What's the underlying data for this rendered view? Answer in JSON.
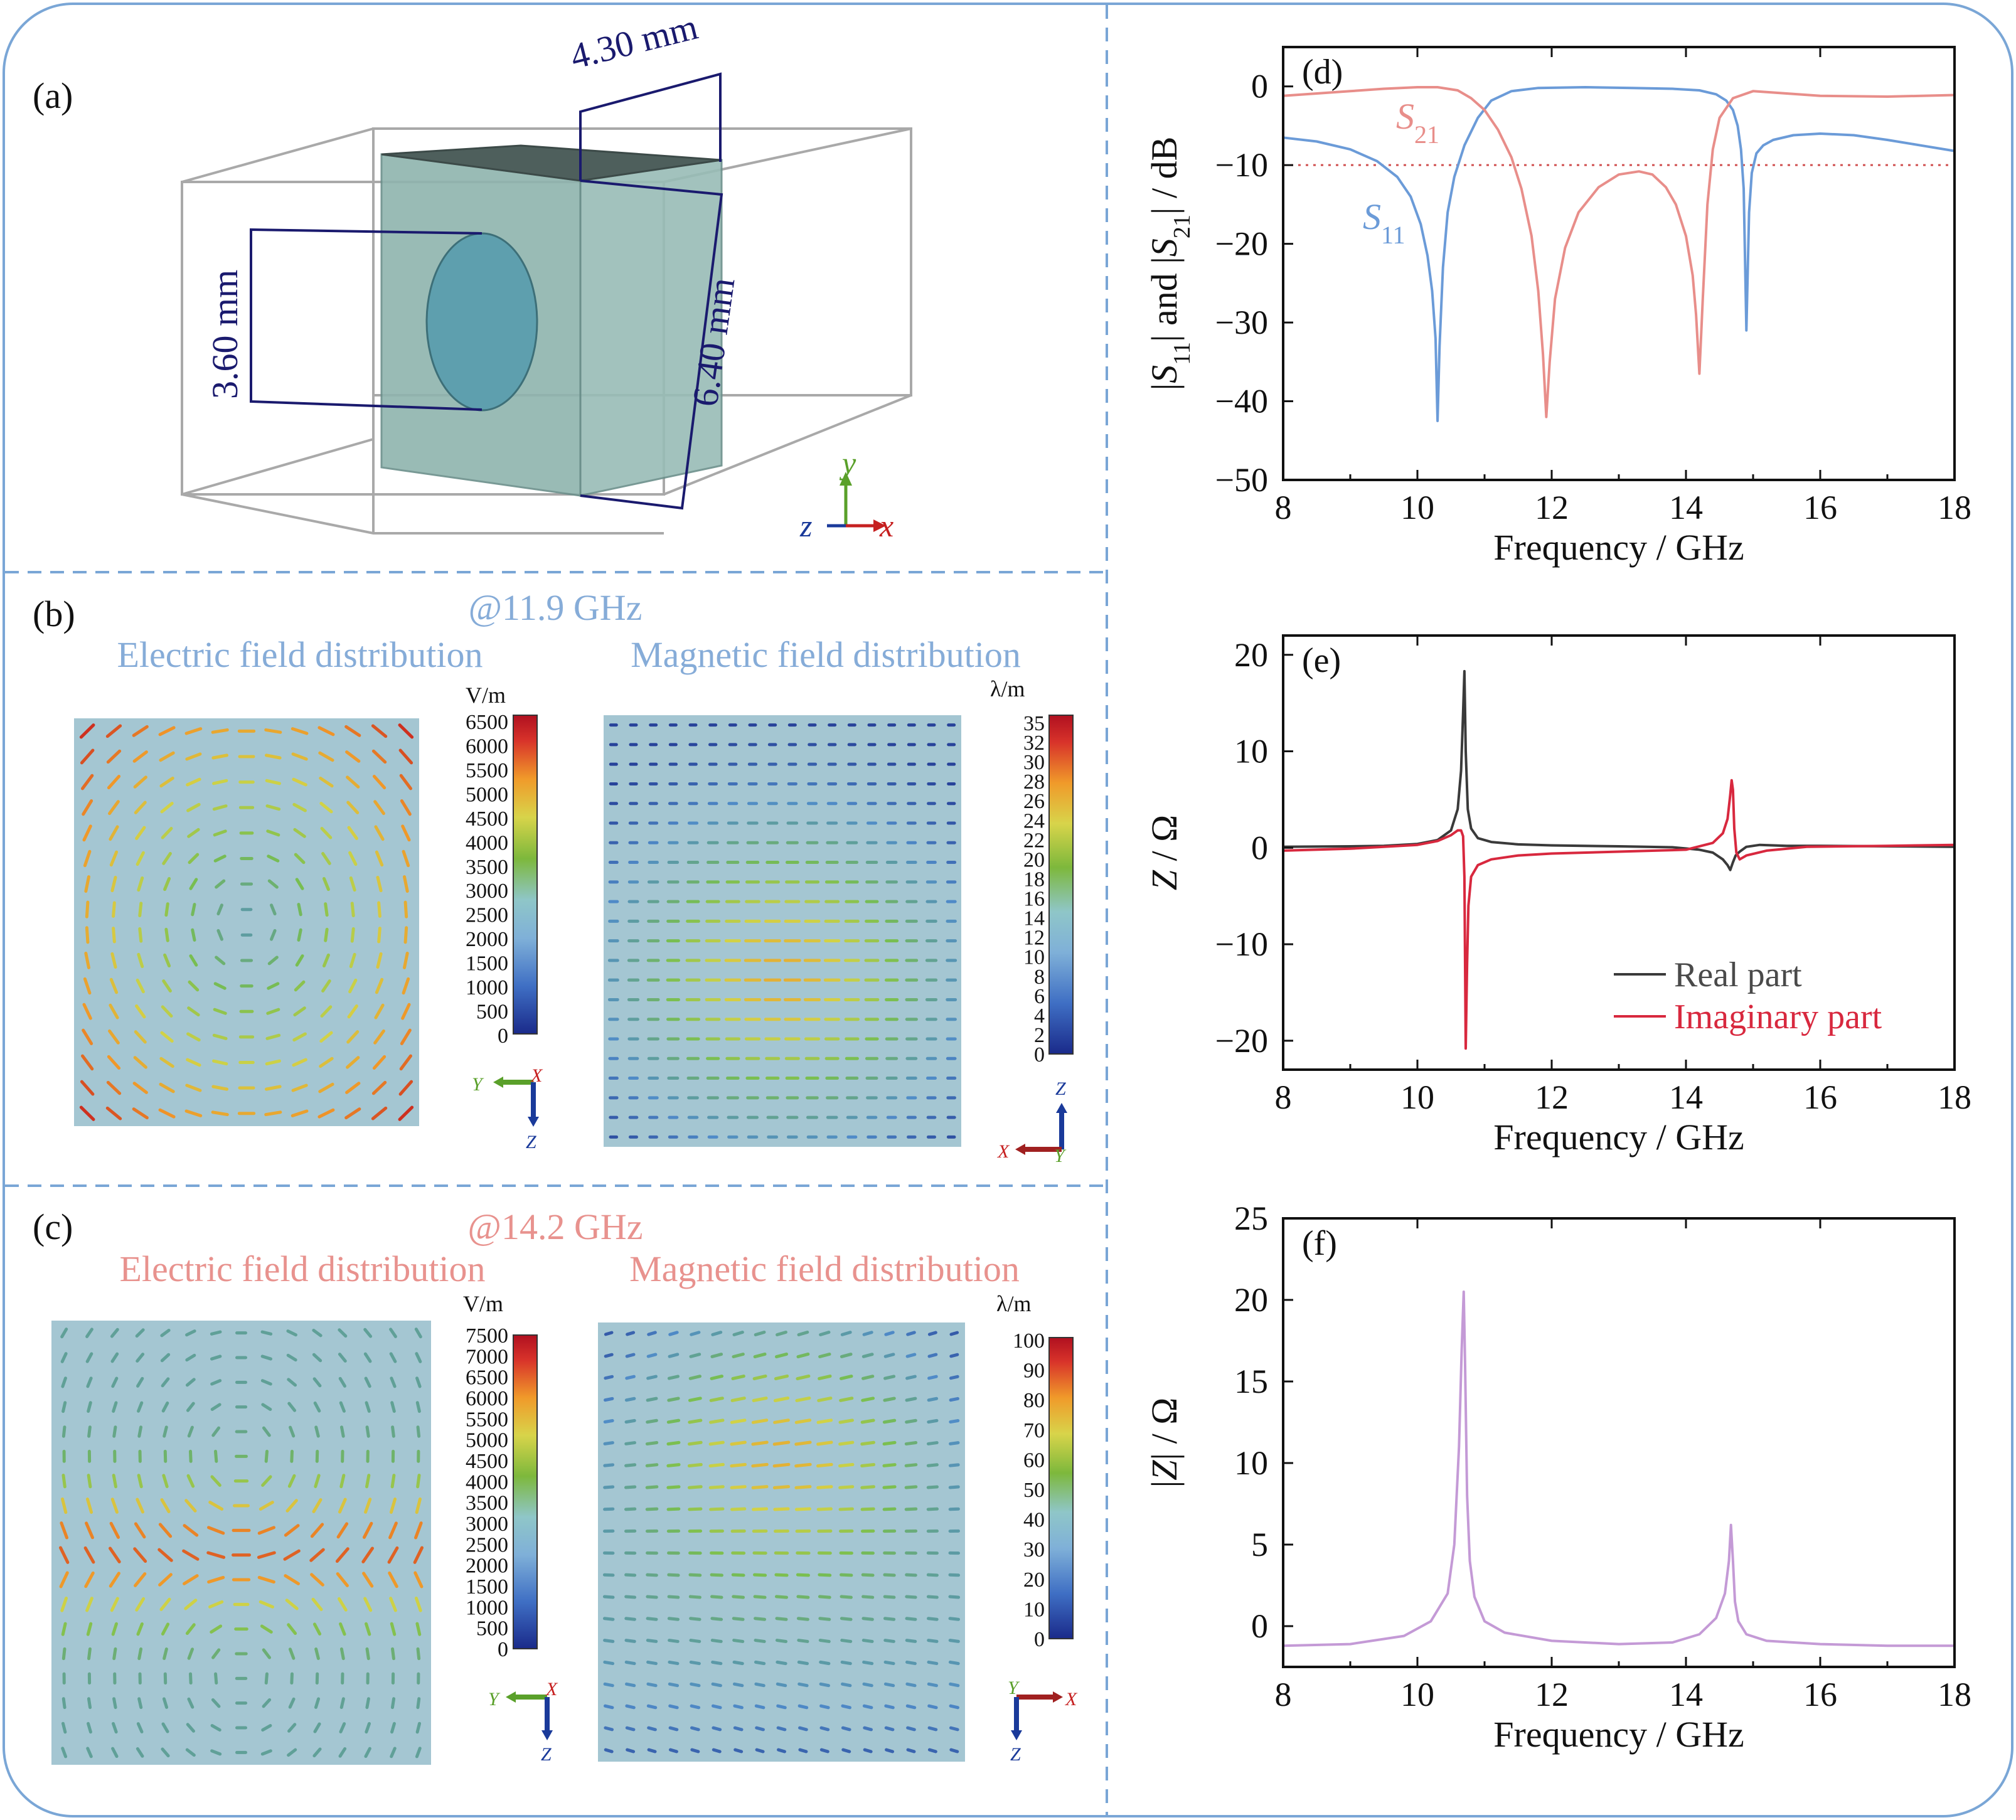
{
  "panel_a": {
    "label": "(a)",
    "dim_top": "4.30 mm",
    "dim_left": "3.60 mm",
    "dim_right": "6.40 mm",
    "axis_y": "y",
    "axis_z": "z",
    "axis_x": "x"
  },
  "panel_b": {
    "label": "(b)",
    "freq": "@11.9 GHz",
    "e_title": "Electric field distribution",
    "m_title": "Magnetic field distribution",
    "e_unit": "V/m",
    "m_unit": "λ/m",
    "e_ticks": [
      "6500",
      "6000",
      "5500",
      "5000",
      "4500",
      "4000",
      "3500",
      "3000",
      "2500",
      "2000",
      "1500",
      "1000",
      "500",
      "0"
    ],
    "m_ticks": [
      "35",
      "32",
      "30",
      "28",
      "26",
      "24",
      "22",
      "20",
      "18",
      "16",
      "14",
      "12",
      "10",
      "8",
      "6",
      "4",
      "2",
      "0"
    ],
    "e_axes": {
      "h": "Y",
      "c": "X",
      "v": "Z"
    },
    "m_axes": {
      "h": "X",
      "c": "Y",
      "v": "Z"
    }
  },
  "panel_c": {
    "label": "(c)",
    "freq": "@14.2 GHz",
    "e_title": "Electric field distribution",
    "m_title": "Magnetic field distribution",
    "e_unit": "V/m",
    "m_unit": "λ/m",
    "e_ticks": [
      "7500",
      "7000",
      "6500",
      "6000",
      "5500",
      "5000",
      "4500",
      "4000",
      "3500",
      "3000",
      "2500",
      "2000",
      "1500",
      "1000",
      "500",
      "0"
    ],
    "m_ticks": [
      "100",
      "90",
      "80",
      "70",
      "60",
      "50",
      "40",
      "30",
      "20",
      "10",
      "0"
    ],
    "e_axes": {
      "h": "Y",
      "c": "X",
      "v": "Z"
    },
    "m_axes": {
      "h": "X",
      "c": "Y",
      "v": "Z"
    }
  },
  "colors": {
    "frame": "#7aa6d6",
    "s11": "#6b9bd8",
    "s21": "#e88e8a",
    "real": "#3a3a3a",
    "imag": "#d8283e",
    "absz": "#c49ad6",
    "navy": "#1a1a6e"
  },
  "chart_data": [
    {
      "id": "d",
      "type": "line",
      "label": "(d)",
      "xlabel": "Frequency / GHz",
      "ylabel_parts": [
        "|",
        "S",
        "11",
        "| and |",
        "S",
        "21",
        "| / dB"
      ],
      "xlim": [
        8,
        18
      ],
      "ylim": [
        -50,
        5
      ],
      "xticks": [
        8,
        10,
        12,
        14,
        16,
        18
      ],
      "yticks": [
        0,
        -10,
        -20,
        -30,
        -40,
        -50
      ],
      "reference_line": -10,
      "series": [
        {
          "name": "S11",
          "name_main": "S",
          "name_sub": "11",
          "x": [
            8,
            8.5,
            9,
            9.4,
            9.7,
            9.9,
            10.05,
            10.15,
            10.22,
            10.27,
            10.3,
            10.33,
            10.38,
            10.45,
            10.55,
            10.7,
            10.9,
            11.1,
            11.4,
            11.8,
            12.5,
            13.2,
            13.8,
            14.2,
            14.45,
            14.6,
            14.7,
            14.77,
            14.82,
            14.86,
            14.9,
            14.94,
            14.98,
            15.05,
            15.15,
            15.3,
            15.6,
            16,
            16.5,
            17,
            17.5,
            18
          ],
          "values": [
            -6.5,
            -7,
            -8,
            -9.5,
            -11.5,
            -14,
            -17.5,
            -21.5,
            -26,
            -32,
            -42.5,
            -33,
            -23,
            -16,
            -11.5,
            -7.5,
            -4,
            -1.8,
            -0.6,
            -0.2,
            -0.1,
            -0.2,
            -0.3,
            -0.5,
            -1,
            -1.8,
            -3,
            -5,
            -8,
            -13,
            -31,
            -16,
            -11,
            -8.5,
            -7.5,
            -6.8,
            -6.2,
            -6,
            -6.2,
            -6.8,
            -7.5,
            -8.2
          ]
        },
        {
          "name": "S21",
          "name_main": "S",
          "name_sub": "21",
          "x": [
            8,
            8.5,
            9,
            9.5,
            10,
            10.3,
            10.6,
            10.8,
            11,
            11.2,
            11.4,
            11.55,
            11.7,
            11.8,
            11.87,
            11.92,
            11.97,
            12.05,
            12.2,
            12.4,
            12.7,
            13,
            13.3,
            13.5,
            13.7,
            13.85,
            14,
            14.1,
            14.15,
            14.2,
            14.25,
            14.32,
            14.4,
            14.5,
            14.7,
            15,
            15.5,
            16,
            17,
            18
          ],
          "values": [
            -1.2,
            -0.9,
            -0.6,
            -0.3,
            -0.1,
            -0.1,
            -0.5,
            -1.5,
            -3,
            -5.5,
            -9,
            -13,
            -19,
            -26,
            -34,
            -42,
            -35,
            -27,
            -20.5,
            -16,
            -12.8,
            -11.2,
            -10.8,
            -11.2,
            -12.8,
            -15,
            -19,
            -24,
            -29,
            -36.5,
            -27,
            -15,
            -8,
            -4,
            -1.5,
            -0.6,
            -0.9,
            -1.2,
            -1.3,
            -1.1
          ]
        }
      ]
    },
    {
      "id": "e",
      "type": "line",
      "label": "(e)",
      "xlabel": "Frequency / GHz",
      "ylabel_parts": [
        "Z",
        "",
        "",
        " / Ω"
      ],
      "xlim": [
        8,
        18
      ],
      "ylim": [
        -23,
        22
      ],
      "xticks": [
        8,
        10,
        12,
        14,
        16,
        18
      ],
      "yticks": [
        20,
        10,
        0,
        -10,
        -20
      ],
      "legend": "bottom-right",
      "series": [
        {
          "name": "Real part",
          "x": [
            8,
            9,
            9.5,
            10,
            10.3,
            10.5,
            10.6,
            10.65,
            10.68,
            10.7,
            10.72,
            10.75,
            10.8,
            10.9,
            11.1,
            11.5,
            12,
            13,
            13.8,
            14.2,
            14.4,
            14.55,
            14.62,
            14.66,
            14.7,
            14.74,
            14.8,
            14.9,
            15.1,
            15.5,
            16,
            17,
            18
          ],
          "values": [
            0.1,
            0.15,
            0.2,
            0.4,
            0.8,
            1.8,
            4,
            8,
            14,
            18.3,
            10,
            4,
            2,
            1,
            0.6,
            0.35,
            0.25,
            0.15,
            0.05,
            -0.2,
            -0.5,
            -1.2,
            -1.8,
            -2.3,
            -1.5,
            -0.8,
            -0.4,
            0.1,
            0.3,
            0.2,
            0.2,
            0.15,
            0.1
          ]
        },
        {
          "name": "Imaginary part",
          "x": [
            8,
            9,
            10,
            10.3,
            10.5,
            10.6,
            10.65,
            10.68,
            10.7,
            10.72,
            10.74,
            10.76,
            10.8,
            10.9,
            11.1,
            11.5,
            12,
            13,
            14,
            14.4,
            14.55,
            14.62,
            14.66,
            14.68,
            14.7,
            14.72,
            14.75,
            14.8,
            14.9,
            15.2,
            15.8,
            17,
            18
          ],
          "values": [
            -0.3,
            -0.1,
            0.3,
            0.7,
            1.3,
            1.8,
            1.8,
            1.2,
            -3,
            -20.8,
            -12,
            -6,
            -3,
            -1.8,
            -1.2,
            -0.8,
            -0.6,
            -0.4,
            -0.2,
            0.5,
            1.5,
            3,
            5.5,
            7,
            6,
            2,
            -0.5,
            -1.2,
            -0.8,
            -0.3,
            0.1,
            0.2,
            0.3
          ]
        }
      ]
    },
    {
      "id": "f",
      "type": "line",
      "label": "(f)",
      "xlabel": "Frequency / GHz",
      "ylabel_parts": [
        "|",
        "Z",
        "",
        "| / Ω"
      ],
      "xlim": [
        8,
        18
      ],
      "ylim": [
        -2.5,
        25
      ],
      "xticks": [
        8,
        10,
        12,
        14,
        16,
        18
      ],
      "yticks": [
        25,
        20,
        15,
        10,
        5,
        0
      ],
      "series": [
        {
          "name": "|Z|",
          "x": [
            8,
            9,
            9.8,
            10.2,
            10.45,
            10.55,
            10.62,
            10.66,
            10.69,
            10.71,
            10.74,
            10.78,
            10.85,
            11,
            11.3,
            12,
            13,
            13.8,
            14.2,
            14.45,
            14.58,
            14.64,
            14.67,
            14.7,
            14.73,
            14.78,
            14.9,
            15.2,
            16,
            17,
            18
          ],
          "values": [
            -1.2,
            -1.1,
            -0.6,
            0.3,
            2,
            5,
            11,
            17,
            20.5,
            16,
            8,
            4,
            1.8,
            0.3,
            -0.4,
            -0.9,
            -1.1,
            -1,
            -0.5,
            0.5,
            2,
            4,
            6.2,
            4,
            1.5,
            0.3,
            -0.5,
            -0.9,
            -1.1,
            -1.2,
            -1.2
          ]
        }
      ]
    }
  ],
  "chart_text": {
    "real_legend": "Real part",
    "imag_legend": "Imaginary part"
  }
}
